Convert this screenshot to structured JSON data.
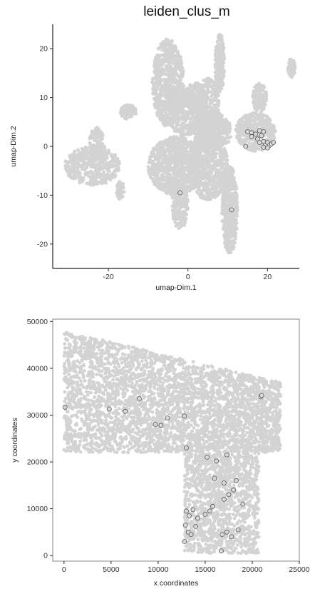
{
  "colors": {
    "background_cells": "#d3d3d3",
    "highlight_stroke": "#555555",
    "axis": "#222222"
  },
  "chart_data": [
    {
      "type": "scatter",
      "title": "leiden_clus_m",
      "xlabel": "umap-Dim.1",
      "ylabel": "umap-Dim.2",
      "xlim": [
        -34,
        28
      ],
      "ylim": [
        -25,
        25
      ],
      "xticks": [
        -20,
        0,
        20
      ],
      "yticks": [
        -20,
        -10,
        0,
        10,
        20
      ],
      "grid": false,
      "frame": "left-bottom",
      "series": [
        {
          "role": "all-cells",
          "color": "#d3d3d3",
          "regions": [
            {
              "cx": -5,
              "cy": 13,
              "rx": 4,
              "ry": 9,
              "n": 700
            },
            {
              "cx": -1,
              "cy": 7,
              "rx": 4,
              "ry": 5,
              "n": 350
            },
            {
              "cx": 5,
              "cy": 8,
              "rx": 3,
              "ry": 6,
              "n": 300
            },
            {
              "cx": 8,
              "cy": 17,
              "rx": 1.2,
              "ry": 6,
              "n": 220
            },
            {
              "cx": -3,
              "cy": -4,
              "rx": 7,
              "ry": 6,
              "n": 950
            },
            {
              "cx": 5,
              "cy": -4,
              "rx": 5,
              "ry": 7,
              "n": 600
            },
            {
              "cx": 6,
              "cy": 3,
              "rx": 5,
              "ry": 4,
              "n": 400
            },
            {
              "cx": 10.5,
              "cy": -13,
              "rx": 2,
              "ry": 9,
              "n": 480
            },
            {
              "cx": -2,
              "cy": -12,
              "rx": 2,
              "ry": 5,
              "n": 200
            },
            {
              "cx": 17,
              "cy": 3,
              "rx": 5,
              "ry": 4,
              "n": 420
            },
            {
              "cx": 18,
              "cy": 10,
              "rx": 1.8,
              "ry": 3,
              "n": 150
            },
            {
              "cx": 26,
              "cy": 16,
              "rx": 1,
              "ry": 2,
              "n": 60
            },
            {
              "cx": -24,
              "cy": -4,
              "rx": 7,
              "ry": 4,
              "n": 450
            },
            {
              "cx": -23,
              "cy": 0,
              "rx": 2,
              "ry": 4,
              "n": 120
            },
            {
              "cx": -15,
              "cy": 7,
              "rx": 2,
              "ry": 1.5,
              "n": 80
            },
            {
              "cx": -17,
              "cy": -9,
              "rx": 1,
              "ry": 2,
              "n": 50
            },
            {
              "cx": 2,
              "cy": 10,
              "rx": 3,
              "ry": 3,
              "n": 200
            }
          ]
        },
        {
          "role": "highlighted",
          "marker": "open-circle",
          "points": [
            [
              15,
              3
            ],
            [
              16,
              2.8
            ],
            [
              17,
              2.5
            ],
            [
              18,
              3.2
            ],
            [
              18.5,
              2.2
            ],
            [
              19,
              3
            ],
            [
              17.5,
              1.5
            ],
            [
              18,
              0.8
            ],
            [
              19,
              1
            ],
            [
              19.5,
              0.3
            ],
            [
              20,
              0.8
            ],
            [
              20.5,
              0.2
            ],
            [
              21,
              0.5
            ],
            [
              21.5,
              0.8
            ],
            [
              19,
              -0.2
            ],
            [
              20,
              -0.3
            ],
            [
              16,
              2
            ],
            [
              14.5,
              0
            ],
            [
              -2,
              -9.5
            ],
            [
              11,
              -13
            ]
          ]
        }
      ]
    },
    {
      "type": "scatter",
      "title": "",
      "xlabel": "x coordinates",
      "ylabel": "y coordinates",
      "xlim": [
        -1200,
        25000
      ],
      "ylim": [
        -1200,
        50500
      ],
      "xticks": [
        0,
        5000,
        10000,
        15000,
        20000,
        25000
      ],
      "yticks": [
        0,
        10000,
        20000,
        30000,
        40000,
        50000
      ],
      "grid": false,
      "frame": "box",
      "series": [
        {
          "role": "all-cells",
          "color": "#d3d3d3",
          "regions": [
            {
              "x0": 0,
              "x1": 23000,
              "y0": 22000,
              "top_left": 48000,
              "top_right": 37000,
              "n": 3800
            },
            {
              "x0": 12800,
              "x1": 20700,
              "y0": 500,
              "y1": 22000,
              "n": 1300
            }
          ]
        },
        {
          "role": "highlighted",
          "marker": "open-circle",
          "points": [
            [
              100,
              31700
            ],
            [
              4800,
              31300
            ],
            [
              6500,
              30800
            ],
            [
              8000,
              33500
            ],
            [
              9700,
              28000
            ],
            [
              10300,
              27800
            ],
            [
              11000,
              29400
            ],
            [
              12800,
              29800
            ],
            [
              13000,
              23000
            ],
            [
              15200,
              21000
            ],
            [
              16200,
              20200
            ],
            [
              17000,
              15500
            ],
            [
              17300,
              21500
            ],
            [
              18300,
              16000
            ],
            [
              16000,
              16500
            ],
            [
              17000,
              12000
            ],
            [
              17500,
              13000
            ],
            [
              18000,
              14000
            ],
            [
              15800,
              10500
            ],
            [
              15500,
              9500
            ],
            [
              13000,
              9500
            ],
            [
              13300,
              8500
            ],
            [
              13700,
              9800
            ],
            [
              14200,
              8000
            ],
            [
              15000,
              8800
            ],
            [
              12900,
              6500
            ],
            [
              13200,
              5000
            ],
            [
              14000,
              6200
            ],
            [
              13500,
              4500
            ],
            [
              12800,
              3000
            ],
            [
              16800,
              4500
            ],
            [
              17300,
              5000
            ],
            [
              17800,
              4000
            ],
            [
              18500,
              5500
            ],
            [
              19000,
              11000
            ],
            [
              16700,
              1000
            ],
            [
              20900,
              33900
            ],
            [
              21000,
              34200
            ]
          ]
        }
      ]
    }
  ]
}
